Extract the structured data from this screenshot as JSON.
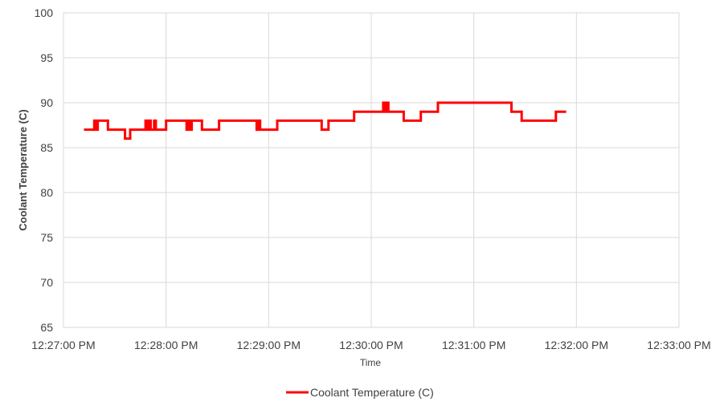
{
  "chart_data": {
    "type": "line",
    "title": "",
    "xlabel": "Time",
    "ylabel": "Coolant Temperature (C)",
    "ylim": [
      65,
      100
    ],
    "yticks": [
      65,
      70,
      75,
      80,
      85,
      90,
      95,
      100
    ],
    "xlim_seconds": [
      0,
      360
    ],
    "xticks": [
      {
        "t": 0,
        "label": "12:27:00 PM"
      },
      {
        "t": 60,
        "label": "12:28:00 PM"
      },
      {
        "t": 120,
        "label": "12:29:00 PM"
      },
      {
        "t": 180,
        "label": "12:30:00 PM"
      },
      {
        "t": 240,
        "label": "12:31:00 PM"
      },
      {
        "t": 300,
        "label": "12:32:00 PM"
      },
      {
        "t": 360,
        "label": "12:33:00 PM"
      }
    ],
    "grid": true,
    "legend": "bottom",
    "series": [
      {
        "name": "Coolant Temperature (C)",
        "color": "#ff0000",
        "step": true,
        "points": [
          [
            12,
            87
          ],
          [
            18,
            87
          ],
          [
            18,
            88
          ],
          [
            19,
            88
          ],
          [
            19,
            87
          ],
          [
            20,
            87
          ],
          [
            20,
            88
          ],
          [
            26,
            88
          ],
          [
            26,
            87
          ],
          [
            36,
            87
          ],
          [
            36,
            86
          ],
          [
            39,
            86
          ],
          [
            39,
            87
          ],
          [
            48,
            87
          ],
          [
            48,
            88
          ],
          [
            49,
            88
          ],
          [
            49,
            87
          ],
          [
            50,
            87
          ],
          [
            50,
            88
          ],
          [
            51,
            88
          ],
          [
            51,
            87
          ],
          [
            53,
            87
          ],
          [
            53,
            88
          ],
          [
            54,
            88
          ],
          [
            54,
            87
          ],
          [
            60,
            87
          ],
          [
            60,
            88
          ],
          [
            72,
            88
          ],
          [
            72,
            87
          ],
          [
            73,
            87
          ],
          [
            73,
            88
          ],
          [
            74,
            88
          ],
          [
            74,
            87
          ],
          [
            75,
            87
          ],
          [
            75,
            88
          ],
          [
            81,
            88
          ],
          [
            81,
            87
          ],
          [
            91,
            87
          ],
          [
            91,
            88
          ],
          [
            113,
            88
          ],
          [
            113,
            87
          ],
          [
            114,
            87
          ],
          [
            114,
            88
          ],
          [
            115,
            88
          ],
          [
            115,
            87
          ],
          [
            125,
            87
          ],
          [
            125,
            88
          ],
          [
            151,
            88
          ],
          [
            151,
            87
          ],
          [
            155,
            87
          ],
          [
            155,
            88
          ],
          [
            170,
            88
          ],
          [
            170,
            89
          ],
          [
            187,
            89
          ],
          [
            187,
            90
          ],
          [
            188,
            90
          ],
          [
            188,
            89
          ],
          [
            189,
            89
          ],
          [
            189,
            90
          ],
          [
            190,
            90
          ],
          [
            190,
            89
          ],
          [
            199,
            89
          ],
          [
            199,
            88
          ],
          [
            209,
            88
          ],
          [
            209,
            89
          ],
          [
            219,
            89
          ],
          [
            219,
            90
          ],
          [
            262,
            90
          ],
          [
            262,
            89
          ],
          [
            268,
            89
          ],
          [
            268,
            88
          ],
          [
            288,
            88
          ],
          [
            288,
            89
          ],
          [
            294,
            89
          ]
        ]
      }
    ]
  }
}
